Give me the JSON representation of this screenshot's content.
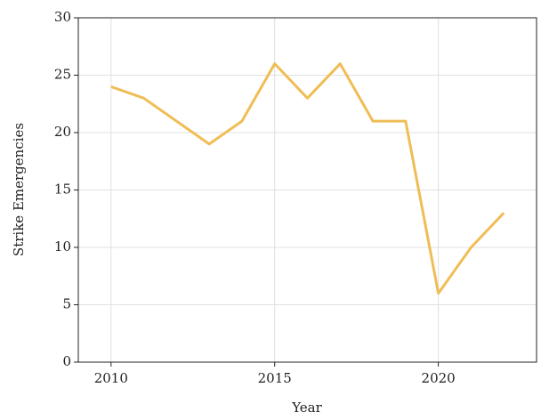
{
  "chart_data": {
    "type": "line",
    "x_label": "Year",
    "y_label": "Strike Emergencies",
    "x": [
      2010,
      2011,
      2012,
      2013,
      2014,
      2015,
      2016,
      2017,
      2018,
      2019,
      2020,
      2021,
      2022
    ],
    "series": [
      {
        "name": "Strike Emergencies",
        "color": "#f0bd55",
        "values": [
          24,
          23,
          21,
          19,
          21,
          26,
          23,
          26,
          21,
          21,
          6,
          10,
          13
        ]
      }
    ],
    "xlim": [
      2009,
      2023
    ],
    "ylim": [
      0,
      30
    ],
    "xticks": [
      2010,
      2015,
      2020
    ],
    "yticks": [
      0,
      5,
      10,
      15,
      20,
      25,
      30
    ],
    "grid": true
  }
}
